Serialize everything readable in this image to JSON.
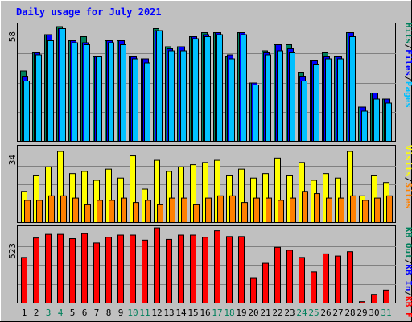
{
  "colors": {
    "background": "#C0C0C0",
    "plot_bg": "#C0C0C0",
    "gridline": "#808080",
    "title": "#0000FF",
    "hits": "#00805C",
    "files": "#0000FF",
    "pages": "#00C0FF",
    "visits": "#FFFF00",
    "sites": "#FF8000",
    "kb_f": "#FF0000",
    "kb_in": "#0000FF",
    "kb_out": "#00805C",
    "weekday_label": "#000000",
    "weekend_label": "#00805C"
  },
  "chart_data": [
    {
      "type": "bar",
      "title": "Daily usage for July 2021",
      "panel": "hits-files-pages",
      "ylabel_right": [
        "Pages",
        "/",
        "Files",
        "/",
        "Hits"
      ],
      "y_max_label": "58",
      "ylim": [
        0,
        58
      ],
      "x": [
        "1",
        "2",
        "3",
        "4",
        "5",
        "6",
        "7",
        "8",
        "9",
        "10",
        "11",
        "12",
        "13",
        "14",
        "15",
        "16",
        "17",
        "18",
        "19",
        "20",
        "21",
        "22",
        "23",
        "24",
        "25",
        "26",
        "27",
        "28",
        "29",
        "30",
        "31"
      ],
      "weekend_days": [
        "3",
        "4",
        "10",
        "11",
        "17",
        "18",
        "24",
        "25",
        "31"
      ],
      "series": [
        {
          "name": "Hits",
          "values": [
            35,
            44,
            53,
            57,
            50,
            52,
            42,
            50,
            50,
            42,
            41,
            56,
            47,
            47,
            52,
            54,
            54,
            42,
            54,
            29,
            45,
            48,
            48,
            34,
            40,
            44,
            42,
            54,
            17,
            24,
            21
          ]
        },
        {
          "name": "Files",
          "values": [
            32,
            44,
            53,
            56,
            50,
            49,
            42,
            50,
            50,
            42,
            41,
            55,
            46,
            47,
            52,
            53,
            54,
            43,
            54,
            29,
            44,
            48,
            46,
            32,
            40,
            42,
            42,
            54,
            17,
            24,
            21
          ]
        },
        {
          "name": "Pages",
          "values": [
            30,
            43,
            50,
            56,
            49,
            48,
            42,
            49,
            48,
            41,
            39,
            55,
            45,
            45,
            51,
            52,
            53,
            41,
            53,
            28,
            43,
            45,
            44,
            30,
            38,
            41,
            41,
            52,
            15,
            21,
            19
          ]
        }
      ]
    },
    {
      "type": "bar",
      "panel": "visits-sites",
      "ylabel_right": [
        "Visits",
        "/",
        "Sites"
      ],
      "y_max_label": "34",
      "ylim": [
        0,
        34
      ],
      "series": [
        {
          "name": "Visits",
          "values": [
            14,
            21,
            25,
            32,
            22,
            23,
            19,
            24,
            20,
            30,
            15,
            28,
            23,
            25,
            26,
            27,
            28,
            21,
            24,
            20,
            22,
            29,
            21,
            27,
            19,
            22,
            20,
            32,
            12,
            21,
            18
          ]
        },
        {
          "name": "Sites",
          "values": [
            10,
            10,
            12,
            12,
            11,
            8,
            10,
            10,
            11,
            9,
            10,
            8,
            11,
            11,
            8,
            11,
            12,
            12,
            9,
            11,
            11,
            10,
            11,
            14,
            13,
            11,
            11,
            12,
            10,
            11,
            12
          ]
        }
      ]
    },
    {
      "type": "bar",
      "panel": "kbytes",
      "ylabel_right": [
        "KB F",
        "/",
        "KB In",
        "/",
        "KB Out"
      ],
      "y_max_label": "523",
      "ylim": [
        0,
        523
      ],
      "series": [
        {
          "name": "KB F",
          "values": [
            315,
            450,
            475,
            475,
            445,
            480,
            415,
            455,
            470,
            470,
            435,
            520,
            440,
            470,
            470,
            455,
            500,
            460,
            460,
            175,
            275,
            385,
            365,
            315,
            215,
            340,
            325,
            355,
            10,
            60,
            90
          ]
        }
      ]
    }
  ]
}
